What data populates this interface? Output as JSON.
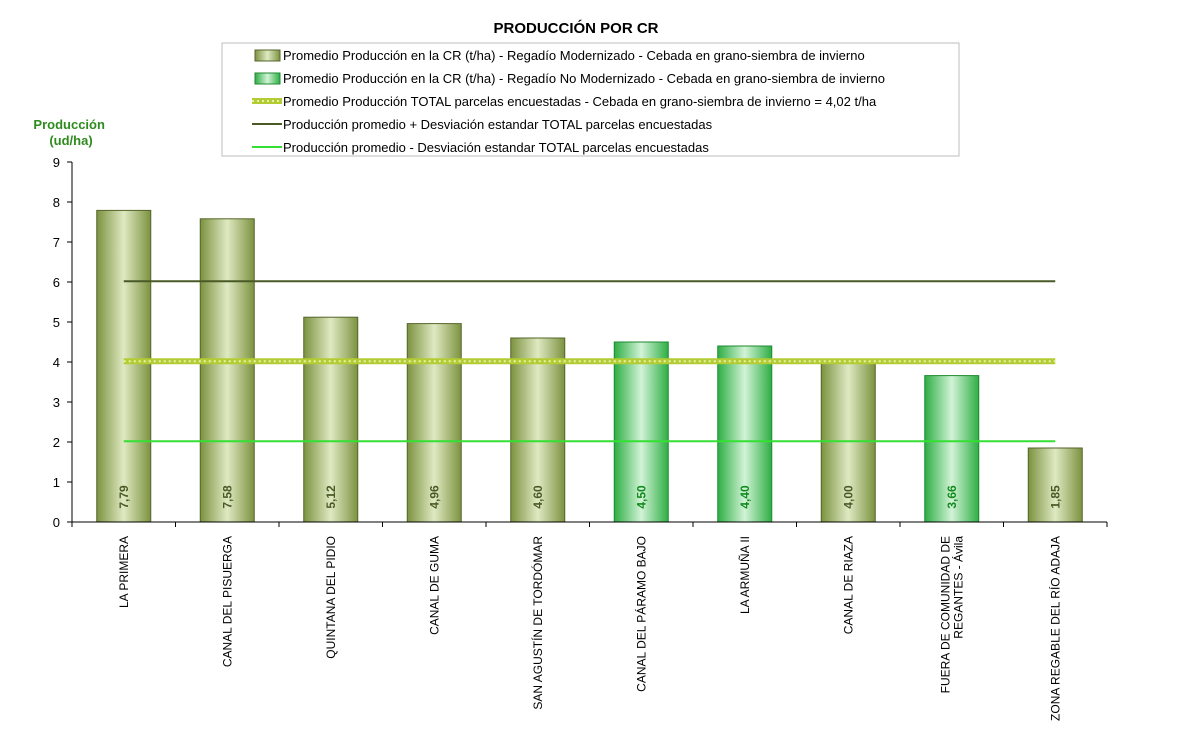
{
  "chart_data": {
    "type": "bar",
    "title": "PRODUCCIÓN POR CR",
    "ylabel": "Producción\n(ud/ha)",
    "ylim": [
      0,
      9
    ],
    "yticks": [
      0,
      1,
      2,
      3,
      4,
      5,
      6,
      7,
      8,
      9
    ],
    "categories": [
      "LA PRIMERA",
      "CANAL DEL PISUERGA",
      "QUINTANA DEL PIDIO",
      "CANAL DE GUMA",
      "SAN AGUSTÍN DE TORDÓMAR",
      "CANAL DEL PÁRAMO BAJO",
      "LA ARMUÑA II",
      "CANAL DE RIAZA",
      "FUERA DE COMUNIDAD DE\nREGANTES - Ávila",
      "ZONA REGABLE DEL RÍO ADAJA"
    ],
    "values": [
      7.79,
      7.58,
      5.12,
      4.96,
      4.6,
      4.5,
      4.4,
      4.0,
      3.66,
      1.85
    ],
    "value_labels": [
      "7,79",
      "7,58",
      "5,12",
      "4,96",
      "4,60",
      "4,50",
      "4,40",
      "4,00",
      "3,66",
      "1,85"
    ],
    "series_of_bar": [
      "modernizado",
      "modernizado",
      "modernizado",
      "modernizado",
      "modernizado",
      "no_modernizado",
      "no_modernizado",
      "modernizado",
      "no_modernizado",
      "modernizado"
    ],
    "series": [
      {
        "key": "modernizado",
        "name": "Promedio Producción en la CR (t/ha) - Regadío Modernizado  - Cebada en grano-siembra de invierno",
        "color": "#8a9f4e",
        "label_color": "#4a5a26"
      },
      {
        "key": "no_modernizado",
        "name": "Promedio Producción en la CR (t/ha) - Regadío No Modernizado  - Cebada en grano-siembra de invierno",
        "color": "#33b84a",
        "label_color": "#118a1e"
      }
    ],
    "reference_lines": [
      {
        "name": "Promedio Producción TOTAL parcelas encuestadas - Cebada en grano-siembra de invierno = 4,02 t/ha",
        "value": 4.02,
        "color": "#b3cc33",
        "style": "dotted-thick"
      },
      {
        "name": "Producción promedio + Desviación estandar TOTAL parcelas encuestadas",
        "value": 6.02,
        "color": "#4a5a26",
        "style": "solid"
      },
      {
        "name": "Producción promedio - Desviación estandar TOTAL parcelas encuestadas",
        "value": 2.02,
        "color": "#33e033",
        "style": "solid"
      }
    ],
    "legend_position": "top-center"
  }
}
